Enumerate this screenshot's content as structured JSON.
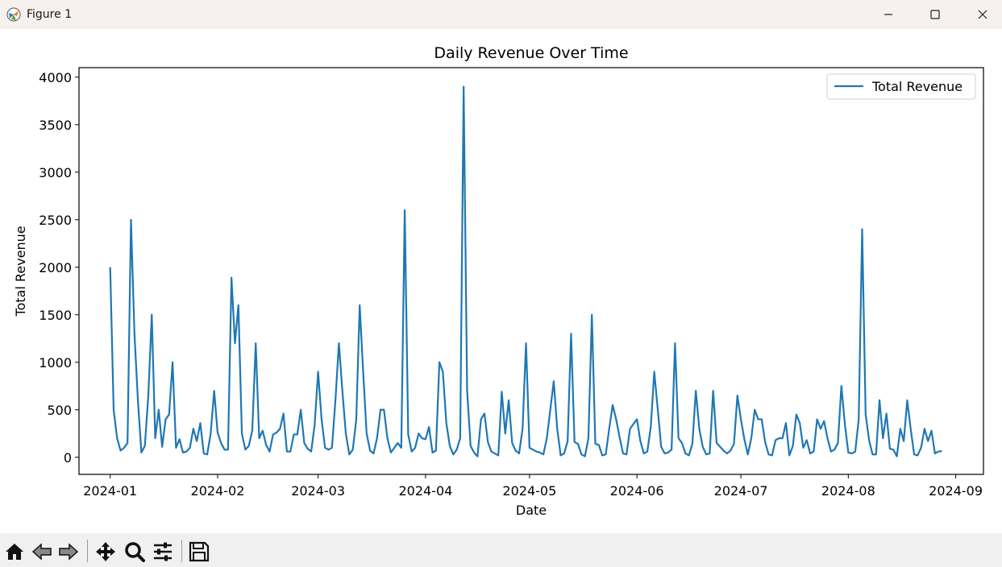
{
  "window": {
    "title": "Figure 1",
    "icons": [
      "app-icon",
      "minimize-icon",
      "maximize-icon",
      "close-icon"
    ]
  },
  "toolbar": {
    "tools": [
      "home-icon",
      "back-arrow-icon",
      "forward-arrow-icon",
      "pan-icon",
      "zoom-icon",
      "configure-subplots-icon",
      "save-icon"
    ]
  },
  "chart_data": {
    "type": "line",
    "title": "Daily Revenue Over Time",
    "xlabel": "Date",
    "ylabel": "Total Revenue",
    "xlim": [
      "2023-12-23",
      "2024-09-09"
    ],
    "ylim": [
      -180,
      4100
    ],
    "x_ticks": [
      "2024-01-01",
      "2024-02-01",
      "2024-03-01",
      "2024-04-01",
      "2024-05-01",
      "2024-06-01",
      "2024-07-01",
      "2024-08-01",
      "2024-09-01"
    ],
    "x_tick_labels": [
      "2024-01",
      "2024-02",
      "2024-03",
      "2024-04",
      "2024-05",
      "2024-06",
      "2024-07",
      "2024-08",
      "2024-09"
    ],
    "y_ticks": [
      0,
      500,
      1000,
      1500,
      2000,
      2500,
      3000,
      3500,
      4000
    ],
    "y_tick_labels": [
      "0",
      "500",
      "1000",
      "1500",
      "2000",
      "2500",
      "3000",
      "3500",
      "4000"
    ],
    "grid": false,
    "legend": {
      "position": "top-right",
      "entries": [
        "Total Revenue"
      ]
    },
    "series": [
      {
        "name": "Total Revenue",
        "color": "#1f77b4",
        "points": [
          [
            "2024-01-01",
            2000
          ],
          [
            "2024-01-02",
            500
          ],
          [
            "2024-01-03",
            200
          ],
          [
            "2024-01-04",
            70
          ],
          [
            "2024-01-05",
            100
          ],
          [
            "2024-01-06",
            150
          ],
          [
            "2024-01-07",
            2500
          ],
          [
            "2024-01-08",
            1300
          ],
          [
            "2024-01-09",
            600
          ],
          [
            "2024-01-10",
            50
          ],
          [
            "2024-01-11",
            120
          ],
          [
            "2024-01-12",
            650
          ],
          [
            "2024-01-13",
            1500
          ],
          [
            "2024-01-14",
            200
          ],
          [
            "2024-01-15",
            500
          ],
          [
            "2024-01-16",
            110
          ],
          [
            "2024-01-17",
            400
          ],
          [
            "2024-01-18",
            450
          ],
          [
            "2024-01-19",
            1000
          ],
          [
            "2024-01-20",
            100
          ],
          [
            "2024-01-21",
            190
          ],
          [
            "2024-01-22",
            50
          ],
          [
            "2024-01-23",
            60
          ],
          [
            "2024-01-24",
            100
          ],
          [
            "2024-01-25",
            300
          ],
          [
            "2024-01-26",
            170
          ],
          [
            "2024-01-27",
            360
          ],
          [
            "2024-01-28",
            40
          ],
          [
            "2024-01-29",
            30
          ],
          [
            "2024-01-30",
            250
          ],
          [
            "2024-01-31",
            700
          ],
          [
            "2024-02-01",
            260
          ],
          [
            "2024-02-02",
            150
          ],
          [
            "2024-02-03",
            80
          ],
          [
            "2024-02-04",
            80
          ],
          [
            "2024-02-05",
            1890
          ],
          [
            "2024-02-06",
            1200
          ],
          [
            "2024-02-07",
            1600
          ],
          [
            "2024-02-08",
            250
          ],
          [
            "2024-02-09",
            80
          ],
          [
            "2024-02-10",
            120
          ],
          [
            "2024-02-11",
            280
          ],
          [
            "2024-02-12",
            1200
          ],
          [
            "2024-02-13",
            200
          ],
          [
            "2024-02-14",
            280
          ],
          [
            "2024-02-15",
            130
          ],
          [
            "2024-02-16",
            60
          ],
          [
            "2024-02-17",
            240
          ],
          [
            "2024-02-18",
            260
          ],
          [
            "2024-02-19",
            300
          ],
          [
            "2024-02-20",
            460
          ],
          [
            "2024-02-21",
            60
          ],
          [
            "2024-02-22",
            60
          ],
          [
            "2024-02-23",
            240
          ],
          [
            "2024-02-24",
            240
          ],
          [
            "2024-02-25",
            500
          ],
          [
            "2024-02-26",
            150
          ],
          [
            "2024-02-27",
            90
          ],
          [
            "2024-02-28",
            60
          ],
          [
            "2024-02-29",
            340
          ],
          [
            "2024-03-01",
            900
          ],
          [
            "2024-03-02",
            400
          ],
          [
            "2024-03-03",
            100
          ],
          [
            "2024-03-04",
            80
          ],
          [
            "2024-03-05",
            100
          ],
          [
            "2024-03-06",
            600
          ],
          [
            "2024-03-07",
            1200
          ],
          [
            "2024-03-08",
            700
          ],
          [
            "2024-03-09",
            250
          ],
          [
            "2024-03-10",
            30
          ],
          [
            "2024-03-11",
            80
          ],
          [
            "2024-03-12",
            390
          ],
          [
            "2024-03-13",
            1600
          ],
          [
            "2024-03-14",
            900
          ],
          [
            "2024-03-15",
            250
          ],
          [
            "2024-03-16",
            70
          ],
          [
            "2024-03-17",
            40
          ],
          [
            "2024-03-18",
            200
          ],
          [
            "2024-03-19",
            500
          ],
          [
            "2024-03-20",
            500
          ],
          [
            "2024-03-21",
            200
          ],
          [
            "2024-03-22",
            50
          ],
          [
            "2024-03-23",
            100
          ],
          [
            "2024-03-24",
            150
          ],
          [
            "2024-03-25",
            100
          ],
          [
            "2024-03-26",
            2600
          ],
          [
            "2024-03-27",
            240
          ],
          [
            "2024-03-28",
            60
          ],
          [
            "2024-03-29",
            100
          ],
          [
            "2024-03-30",
            250
          ],
          [
            "2024-03-31",
            200
          ],
          [
            "2024-04-01",
            190
          ],
          [
            "2024-04-02",
            320
          ],
          [
            "2024-04-03",
            50
          ],
          [
            "2024-04-04",
            70
          ],
          [
            "2024-04-05",
            1000
          ],
          [
            "2024-04-06",
            900
          ],
          [
            "2024-04-07",
            360
          ],
          [
            "2024-04-08",
            120
          ],
          [
            "2024-04-09",
            30
          ],
          [
            "2024-04-10",
            80
          ],
          [
            "2024-04-11",
            200
          ],
          [
            "2024-04-12",
            3900
          ],
          [
            "2024-04-13",
            700
          ],
          [
            "2024-04-14",
            120
          ],
          [
            "2024-04-15",
            50
          ],
          [
            "2024-04-16",
            10
          ],
          [
            "2024-04-17",
            400
          ],
          [
            "2024-04-18",
            460
          ],
          [
            "2024-04-19",
            160
          ],
          [
            "2024-04-20",
            60
          ],
          [
            "2024-04-21",
            40
          ],
          [
            "2024-04-22",
            20
          ],
          [
            "2024-04-23",
            690
          ],
          [
            "2024-04-24",
            250
          ],
          [
            "2024-04-25",
            600
          ],
          [
            "2024-04-26",
            150
          ],
          [
            "2024-04-27",
            70
          ],
          [
            "2024-04-28",
            40
          ],
          [
            "2024-04-29",
            300
          ],
          [
            "2024-04-30",
            1200
          ],
          [
            "2024-05-01",
            100
          ],
          [
            "2024-05-02",
            80
          ],
          [
            "2024-05-03",
            60
          ],
          [
            "2024-05-04",
            50
          ],
          [
            "2024-05-05",
            30
          ],
          [
            "2024-05-06",
            200
          ],
          [
            "2024-05-07",
            500
          ],
          [
            "2024-05-08",
            800
          ],
          [
            "2024-05-09",
            300
          ],
          [
            "2024-05-10",
            20
          ],
          [
            "2024-05-11",
            40
          ],
          [
            "2024-05-12",
            170
          ],
          [
            "2024-05-13",
            1300
          ],
          [
            "2024-05-14",
            160
          ],
          [
            "2024-05-15",
            140
          ],
          [
            "2024-05-16",
            30
          ],
          [
            "2024-05-17",
            10
          ],
          [
            "2024-05-18",
            200
          ],
          [
            "2024-05-19",
            1500
          ],
          [
            "2024-05-20",
            140
          ],
          [
            "2024-05-21",
            130
          ],
          [
            "2024-05-22",
            20
          ],
          [
            "2024-05-23",
            30
          ],
          [
            "2024-05-24",
            300
          ],
          [
            "2024-05-25",
            550
          ],
          [
            "2024-05-26",
            400
          ],
          [
            "2024-05-27",
            210
          ],
          [
            "2024-05-28",
            40
          ],
          [
            "2024-05-29",
            30
          ],
          [
            "2024-05-30",
            300
          ],
          [
            "2024-05-31",
            350
          ],
          [
            "2024-06-01",
            400
          ],
          [
            "2024-06-02",
            170
          ],
          [
            "2024-06-03",
            40
          ],
          [
            "2024-06-04",
            60
          ],
          [
            "2024-06-05",
            320
          ],
          [
            "2024-06-06",
            900
          ],
          [
            "2024-06-07",
            510
          ],
          [
            "2024-06-08",
            110
          ],
          [
            "2024-06-09",
            40
          ],
          [
            "2024-06-10",
            50
          ],
          [
            "2024-06-11",
            80
          ],
          [
            "2024-06-12",
            1200
          ],
          [
            "2024-06-13",
            200
          ],
          [
            "2024-06-14",
            150
          ],
          [
            "2024-06-15",
            40
          ],
          [
            "2024-06-16",
            20
          ],
          [
            "2024-06-17",
            140
          ],
          [
            "2024-06-18",
            700
          ],
          [
            "2024-06-19",
            300
          ],
          [
            "2024-06-20",
            110
          ],
          [
            "2024-06-21",
            30
          ],
          [
            "2024-06-22",
            40
          ],
          [
            "2024-06-23",
            700
          ],
          [
            "2024-06-24",
            150
          ],
          [
            "2024-06-25",
            110
          ],
          [
            "2024-06-26",
            70
          ],
          [
            "2024-06-27",
            40
          ],
          [
            "2024-06-28",
            70
          ],
          [
            "2024-06-29",
            140
          ],
          [
            "2024-06-30",
            650
          ],
          [
            "2024-07-01",
            400
          ],
          [
            "2024-07-02",
            190
          ],
          [
            "2024-07-03",
            30
          ],
          [
            "2024-07-04",
            200
          ],
          [
            "2024-07-05",
            500
          ],
          [
            "2024-07-06",
            400
          ],
          [
            "2024-07-07",
            400
          ],
          [
            "2024-07-08",
            160
          ],
          [
            "2024-07-09",
            30
          ],
          [
            "2024-07-10",
            20
          ],
          [
            "2024-07-11",
            180
          ],
          [
            "2024-07-12",
            200
          ],
          [
            "2024-07-13",
            200
          ],
          [
            "2024-07-14",
            360
          ],
          [
            "2024-07-15",
            20
          ],
          [
            "2024-07-16",
            120
          ],
          [
            "2024-07-17",
            450
          ],
          [
            "2024-07-18",
            360
          ],
          [
            "2024-07-19",
            100
          ],
          [
            "2024-07-20",
            180
          ],
          [
            "2024-07-21",
            40
          ],
          [
            "2024-07-22",
            60
          ],
          [
            "2024-07-23",
            400
          ],
          [
            "2024-07-24",
            300
          ],
          [
            "2024-07-25",
            380
          ],
          [
            "2024-07-26",
            200
          ],
          [
            "2024-07-27",
            60
          ],
          [
            "2024-07-28",
            80
          ],
          [
            "2024-07-29",
            150
          ],
          [
            "2024-07-30",
            750
          ],
          [
            "2024-07-31",
            350
          ],
          [
            "2024-08-01",
            50
          ],
          [
            "2024-08-02",
            40
          ],
          [
            "2024-08-03",
            60
          ],
          [
            "2024-08-04",
            400
          ],
          [
            "2024-08-05",
            2400
          ],
          [
            "2024-08-06",
            450
          ],
          [
            "2024-08-07",
            180
          ],
          [
            "2024-08-08",
            30
          ],
          [
            "2024-08-09",
            30
          ],
          [
            "2024-08-10",
            600
          ],
          [
            "2024-08-11",
            200
          ],
          [
            "2024-08-12",
            460
          ],
          [
            "2024-08-13",
            90
          ],
          [
            "2024-08-14",
            80
          ],
          [
            "2024-08-15",
            10
          ],
          [
            "2024-08-16",
            300
          ],
          [
            "2024-08-17",
            170
          ],
          [
            "2024-08-18",
            600
          ],
          [
            "2024-08-19",
            300
          ],
          [
            "2024-08-20",
            30
          ],
          [
            "2024-08-21",
            20
          ],
          [
            "2024-08-22",
            100
          ],
          [
            "2024-08-23",
            300
          ],
          [
            "2024-08-24",
            170
          ],
          [
            "2024-08-25",
            280
          ],
          [
            "2024-08-26",
            40
          ],
          [
            "2024-08-27",
            60
          ],
          [
            "2024-08-28",
            65
          ]
        ]
      }
    ]
  }
}
